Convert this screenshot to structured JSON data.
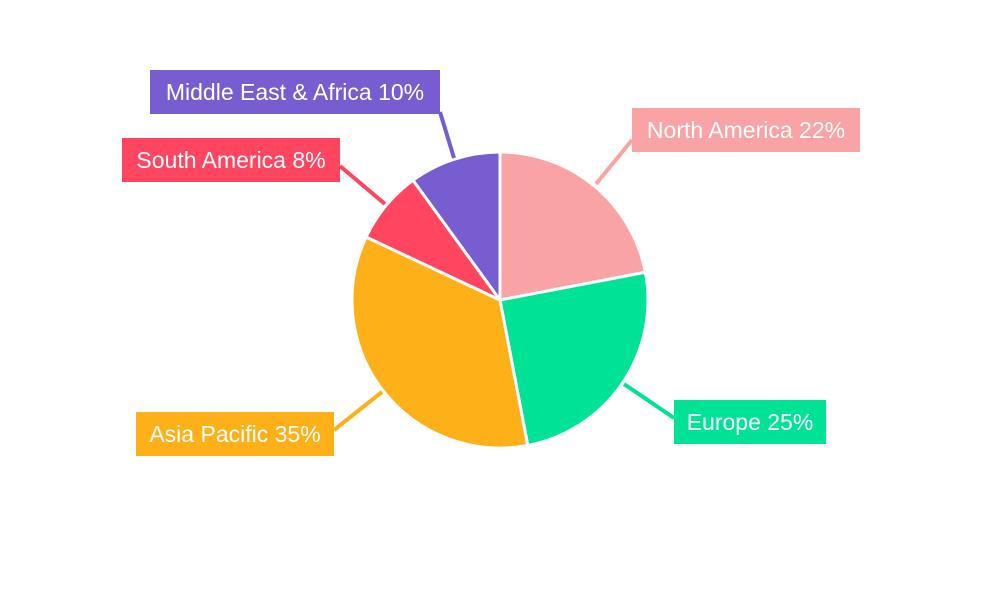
{
  "chart_data": {
    "type": "pie",
    "start_angle_deg": 0,
    "direction": "clockwise",
    "slices": [
      {
        "label": "North America",
        "value": 22,
        "color": "#f9a3a4"
      },
      {
        "label": "Europe",
        "value": 25,
        "color": "#00e396"
      },
      {
        "label": "Asia Pacific",
        "value": 35,
        "color": "#feb019"
      },
      {
        "label": "South America",
        "value": 8,
        "color": "#ff4560"
      },
      {
        "label": "Middle East & Africa",
        "value": 10,
        "color": "#775dd0"
      }
    ],
    "labels": [
      "North America 22%",
      "Europe 25%",
      "Asia Pacific 35%",
      "South America 8%",
      "Middle East & Africa 10%"
    ],
    "legend": "none"
  }
}
